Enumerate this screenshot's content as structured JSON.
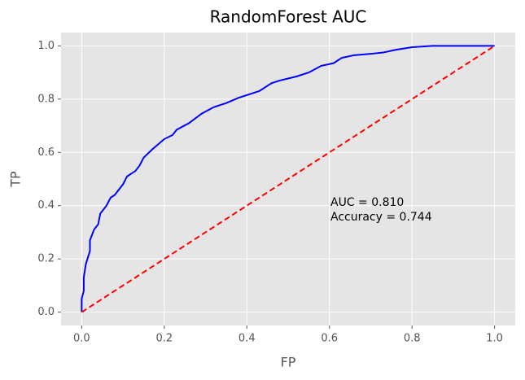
{
  "chart_data": {
    "type": "line",
    "title": "RandomForest AUC",
    "xlabel": "FP",
    "ylabel": "TP",
    "xlim": [
      -0.05,
      1.05
    ],
    "ylim": [
      -0.05,
      1.05
    ],
    "xticks": [
      {
        "value": 0,
        "label": "0.0"
      },
      {
        "value": 0.2,
        "label": "0.2"
      },
      {
        "value": 0.4,
        "label": "0.4"
      },
      {
        "value": 0.6,
        "label": "0.6"
      },
      {
        "value": 0.8,
        "label": "0.8"
      },
      {
        "value": 1,
        "label": "1.0"
      }
    ],
    "yticks": [
      {
        "value": 0,
        "label": "0.0"
      },
      {
        "value": 0.2,
        "label": "0.2"
      },
      {
        "value": 0.4,
        "label": "0.4"
      },
      {
        "value": 0.6,
        "label": "0.6"
      },
      {
        "value": 0.8,
        "label": "0.8"
      },
      {
        "value": 1,
        "label": "1.0"
      }
    ],
    "grid": true,
    "series": [
      {
        "color": "#0000ff",
        "dash": false,
        "x": [
          0,
          0,
          0.005,
          0.005,
          0.01,
          0.02,
          0.02,
          0.03,
          0.04,
          0.045,
          0.06,
          0.07,
          0.08,
          0.1,
          0.11,
          0.13,
          0.14,
          0.15,
          0.17,
          0.2,
          0.22,
          0.23,
          0.26,
          0.29,
          0.32,
          0.35,
          0.38,
          0.43,
          0.46,
          0.48,
          0.52,
          0.55,
          0.58,
          0.61,
          0.63,
          0.66,
          0.7,
          0.73,
          0.76,
          0.8,
          0.85,
          0.91,
          1.0
        ],
        "values": [
          0,
          0.05,
          0.08,
          0.13,
          0.18,
          0.23,
          0.27,
          0.31,
          0.33,
          0.37,
          0.4,
          0.43,
          0.44,
          0.48,
          0.51,
          0.53,
          0.55,
          0.58,
          0.61,
          0.65,
          0.665,
          0.685,
          0.71,
          0.745,
          0.77,
          0.785,
          0.805,
          0.83,
          0.86,
          0.87,
          0.885,
          0.9,
          0.925,
          0.935,
          0.955,
          0.965,
          0.97,
          0.975,
          0.985,
          0.995,
          1.0,
          1.0,
          1.0
        ]
      },
      {
        "color": "#ff0000",
        "dash": true,
        "x": [
          0,
          1
        ],
        "values": [
          0,
          1
        ]
      }
    ],
    "annotations": [
      "AUC = 0.810",
      "Accuracy = 0.744"
    ]
  }
}
